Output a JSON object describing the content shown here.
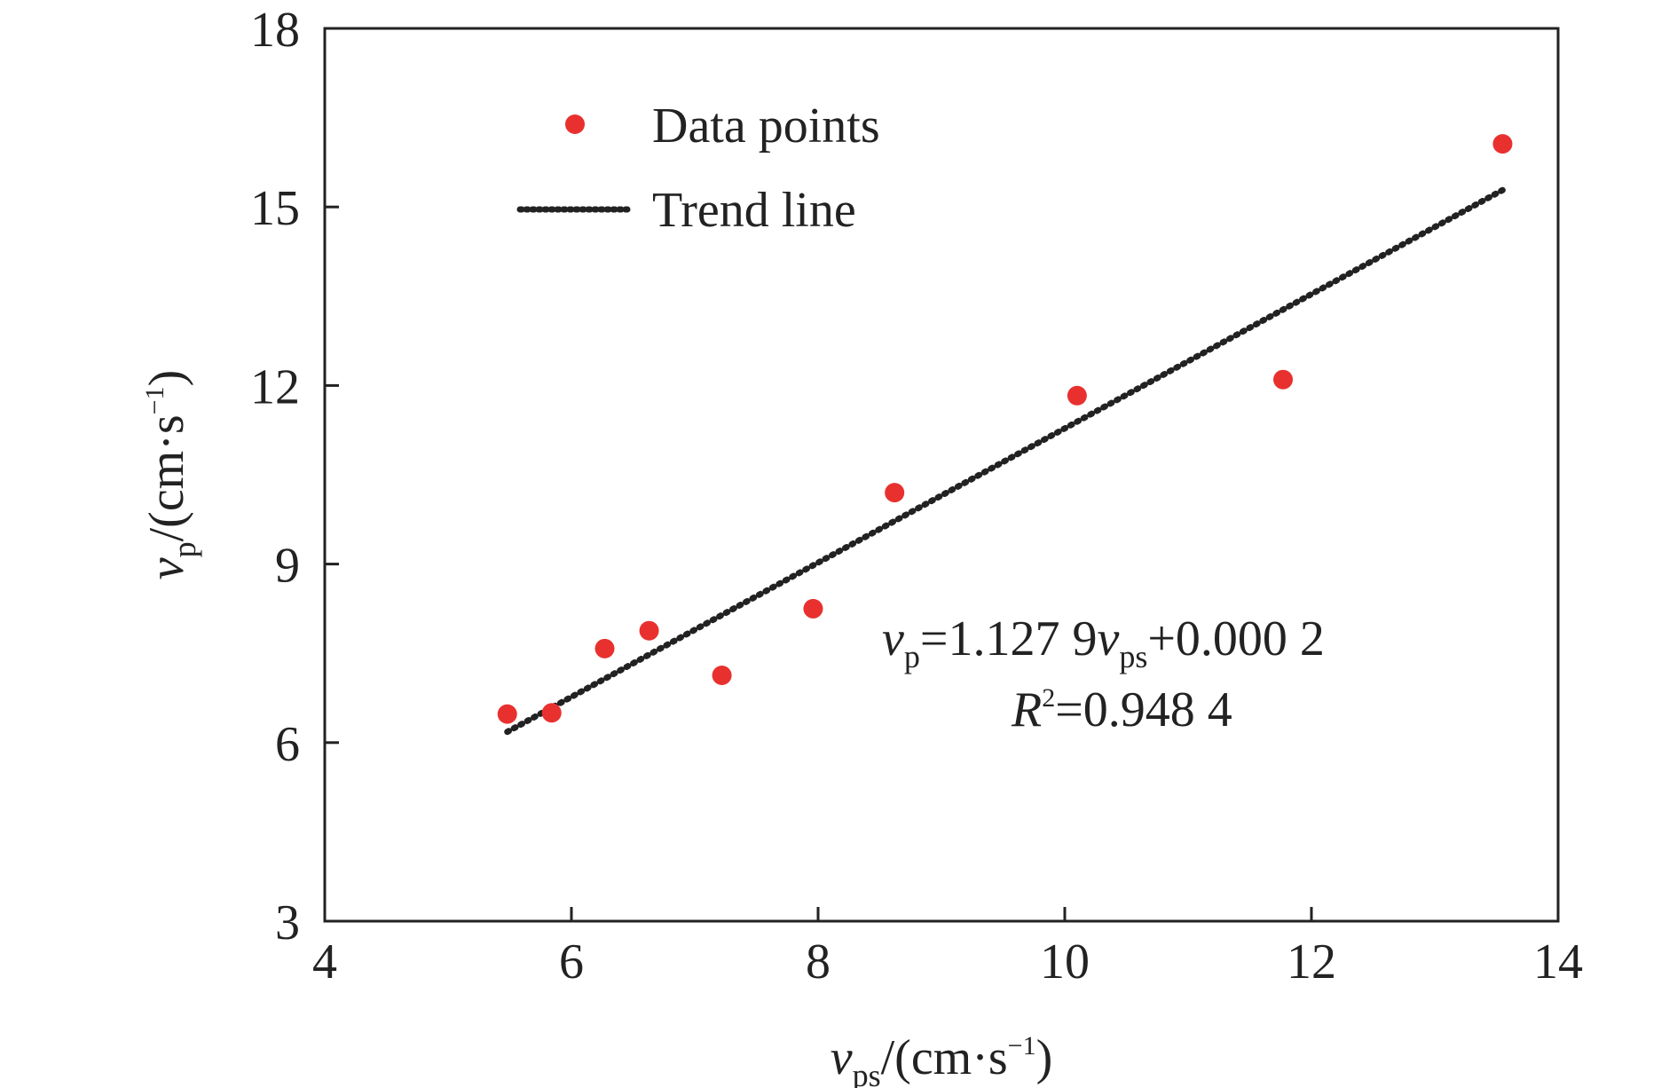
{
  "chart_data": {
    "type": "scatter",
    "title": "",
    "xlabel": {
      "var": "v",
      "sub": "ps",
      "unit_pre": "/(cm·s",
      "unit_sup": "−1",
      "unit_post": ")"
    },
    "ylabel": {
      "var": "v",
      "sub": "p",
      "unit_pre": "/(cm·s",
      "unit_sup": "−1",
      "unit_post": ")"
    },
    "xlim": [
      4,
      14
    ],
    "ylim": [
      3,
      18
    ],
    "x_ticks": [
      "4",
      "6",
      "8",
      "10",
      "12",
      "14"
    ],
    "y_ticks": [
      "3",
      "6",
      "9",
      "12",
      "15",
      "18"
    ],
    "grid": false,
    "legend_position": "top-left",
    "legend": {
      "points_label": "Data points",
      "trend_label": "Trend line"
    },
    "series": [
      {
        "name": "Data points",
        "marker": "circle",
        "color": "#e8312f",
        "points": [
          {
            "x": 5.48,
            "y": 6.48
          },
          {
            "x": 5.84,
            "y": 6.5
          },
          {
            "x": 6.27,
            "y": 7.58
          },
          {
            "x": 6.63,
            "y": 7.88
          },
          {
            "x": 7.22,
            "y": 7.13
          },
          {
            "x": 7.96,
            "y": 8.25
          },
          {
            "x": 8.62,
            "y": 10.2
          },
          {
            "x": 10.1,
            "y": 11.83
          },
          {
            "x": 11.77,
            "y": 12.1
          },
          {
            "x": 13.55,
            "y": 16.06
          }
        ]
      },
      {
        "name": "Trend line",
        "line_style": "dotted",
        "color": "#222222",
        "x_range": [
          5.48,
          13.55
        ],
        "slope": 1.1279,
        "intercept": 0.0002
      }
    ],
    "annotation": {
      "equation": {
        "lhs_var": "v",
        "lhs_sub": "p",
        "mid": "=1.127 9",
        "rhs_var": "v",
        "rhs_sub": "ps",
        "tail": "+0.000 2"
      },
      "r2": {
        "var": "R",
        "sup": "2",
        "value": "=0.948 4"
      }
    }
  }
}
